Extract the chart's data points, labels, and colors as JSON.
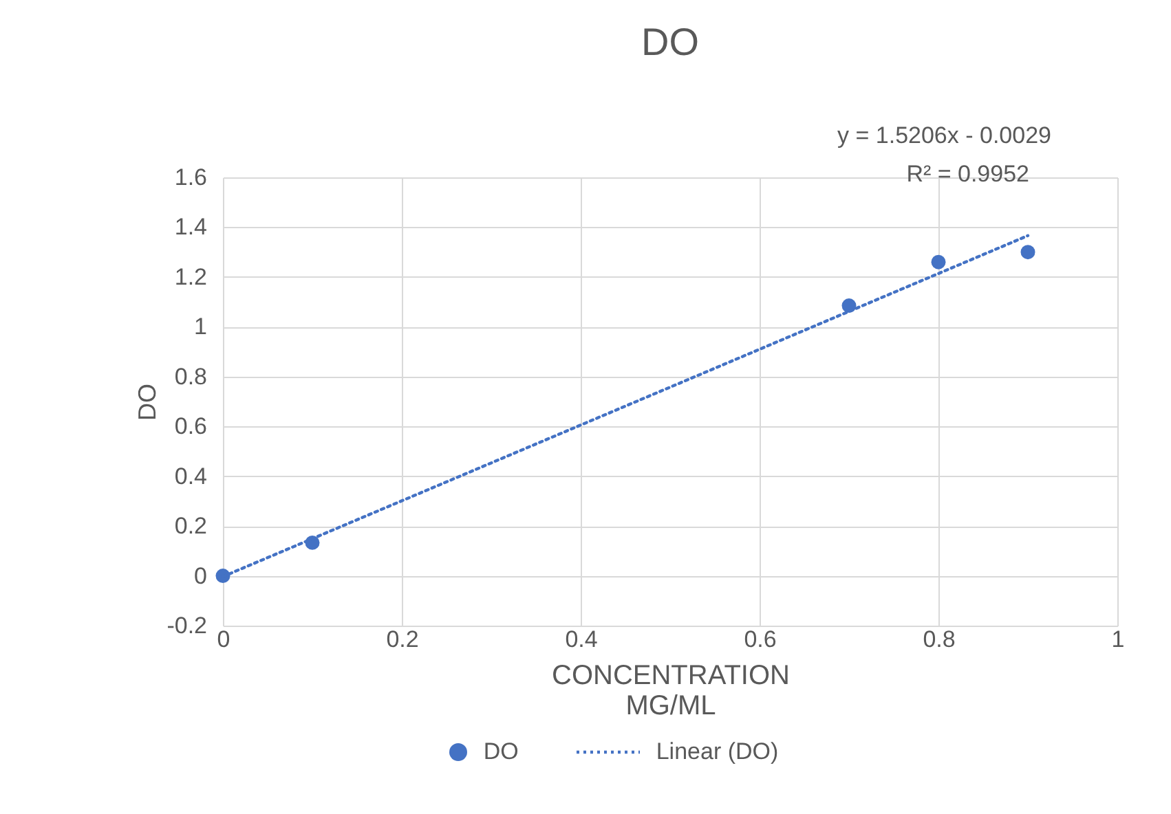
{
  "chart_data": {
    "type": "scatter",
    "title": "DO",
    "xlabel": "CONCENTRATION\nMG/ML",
    "ylabel": "DO",
    "annotations": [
      "y = 1.5206x - 0.0029",
      "R² = 0.9952"
    ],
    "x": [
      0,
      0.1,
      0.7,
      0.8,
      0.9
    ],
    "series": [
      {
        "name": "DO",
        "color": "#4472c4",
        "marker": "circle",
        "values": [
          0,
          0.133,
          1.085,
          1.26,
          1.3
        ]
      },
      {
        "name": "Linear (DO)",
        "type": "line",
        "color": "#4472c4",
        "line_style": "dotted",
        "x": [
          0,
          0.9
        ],
        "values": [
          -0.003,
          1.366
        ]
      }
    ],
    "xlim": [
      0,
      1
    ],
    "xticks": [
      0,
      0.2,
      0.4,
      0.6,
      0.8,
      1
    ],
    "ylim": [
      -0.2,
      1.6
    ],
    "yticks": [
      -0.2,
      0,
      0.2,
      0.4,
      0.6,
      0.8,
      1,
      1.2,
      1.4,
      1.6
    ],
    "grid": true,
    "legend": "bottom"
  }
}
